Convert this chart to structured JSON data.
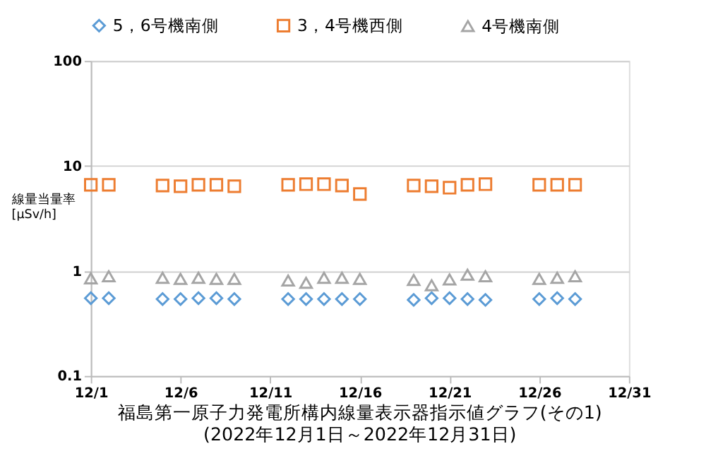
{
  "chart_data": {
    "type": "scatter",
    "title": "福島第一原子力発電所構内線量表示器指示値グラフ(その1)",
    "subtitle": "(2022年12月1日～2022年12月31日)",
    "ylabel": "線量当量率\n[μSv/h]",
    "x": [
      "2022-12-01",
      "2022-12-02",
      "2022-12-05",
      "2022-12-06",
      "2022-12-07",
      "2022-12-08",
      "2022-12-09",
      "2022-12-12",
      "2022-12-13",
      "2022-12-14",
      "2022-12-15",
      "2022-12-16",
      "2022-12-19",
      "2022-12-20",
      "2022-12-21",
      "2022-12-22",
      "2022-12-23",
      "2022-12-26",
      "2022-12-27",
      "2022-12-28"
    ],
    "series": [
      {
        "name": "5，6号機南側",
        "color": "#5b9bd5",
        "marker": "diamond",
        "values": [
          0.55,
          0.55,
          0.54,
          0.54,
          0.55,
          0.55,
          0.54,
          0.54,
          0.54,
          0.54,
          0.54,
          0.54,
          0.53,
          0.55,
          0.55,
          0.54,
          0.53,
          0.54,
          0.55,
          0.54
        ]
      },
      {
        "name": "3，4号機西側",
        "color": "#ed7d31",
        "marker": "square",
        "values": [
          6.6,
          6.6,
          6.5,
          6.4,
          6.6,
          6.6,
          6.4,
          6.6,
          6.7,
          6.7,
          6.5,
          5.4,
          6.5,
          6.4,
          6.2,
          6.6,
          6.7,
          6.6,
          6.6,
          6.6
        ]
      },
      {
        "name": "4号機南側",
        "color": "#a5a5a5",
        "marker": "triangle",
        "values": [
          0.85,
          0.89,
          0.86,
          0.84,
          0.86,
          0.84,
          0.84,
          0.81,
          0.77,
          0.86,
          0.86,
          0.84,
          0.82,
          0.73,
          0.83,
          0.92,
          0.89,
          0.84,
          0.86,
          0.89
        ]
      }
    ],
    "xlim": [
      "2022-12-01",
      "2022-12-31"
    ],
    "xticks": [
      {
        "value": "2022-12-01",
        "label": "12/1"
      },
      {
        "value": "2022-12-06",
        "label": "12/6"
      },
      {
        "value": "2022-12-11",
        "label": "12/11"
      },
      {
        "value": "2022-12-16",
        "label": "12/16"
      },
      {
        "value": "2022-12-21",
        "label": "12/21"
      },
      {
        "value": "2022-12-26",
        "label": "12/26"
      },
      {
        "value": "2022-12-31",
        "label": "12/31"
      }
    ],
    "ylim": [
      0.1,
      100
    ],
    "yticks": [
      0.1,
      1,
      10,
      100
    ],
    "log": "y",
    "grid": "y",
    "legend": "top"
  }
}
